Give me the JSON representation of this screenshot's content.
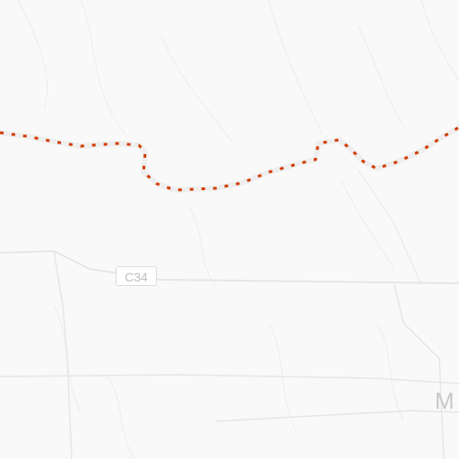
{
  "map": {
    "colors": {
      "background": "#f9f9f9",
      "terrain_lines": "#ececec",
      "road": "#e8e8e8",
      "route_casing": "#eeeeee",
      "route_dash": "#d23c00"
    },
    "labels": {
      "road_shield": "C34",
      "place_fragment": "M"
    }
  }
}
